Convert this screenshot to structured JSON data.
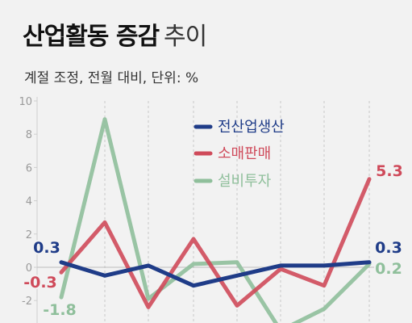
{
  "title_main": "산업활동 증감",
  "title_light": "추이",
  "subtitle": "계절 조정, 전월 대비, 단위: %",
  "chart_data": {
    "type": "line",
    "title": "산업활동 증감 추이",
    "subtitle": "계절 조정, 전월 대비, 단위: %",
    "ylim": [
      -3,
      10
    ],
    "yticks": [
      10,
      8,
      6,
      4,
      2,
      0,
      -2
    ],
    "grid": "vertical dashed",
    "legend": "top-center",
    "series": [
      {
        "name": "전산업생산",
        "color": "#1f3c88",
        "values": [
          0.3,
          -0.5,
          0.1,
          -1.1,
          -0.5,
          0.1,
          0.1,
          0.3
        ],
        "start_label": "0.3",
        "end_label": "0.3"
      },
      {
        "name": "소매판매",
        "color": "#cf4a5a",
        "values": [
          -0.3,
          2.7,
          -2.4,
          1.7,
          -2.3,
          -0.1,
          -1.1,
          5.3
        ],
        "start_label": "-0.3",
        "end_label": "5.3"
      },
      {
        "name": "설비투자",
        "color": "#8fbf9b",
        "values": [
          -1.8,
          8.9,
          -1.9,
          0.2,
          0.3,
          -3.8,
          -2.5,
          0.2
        ],
        "start_label": "-1.8",
        "end_label": "0.2"
      }
    ]
  }
}
